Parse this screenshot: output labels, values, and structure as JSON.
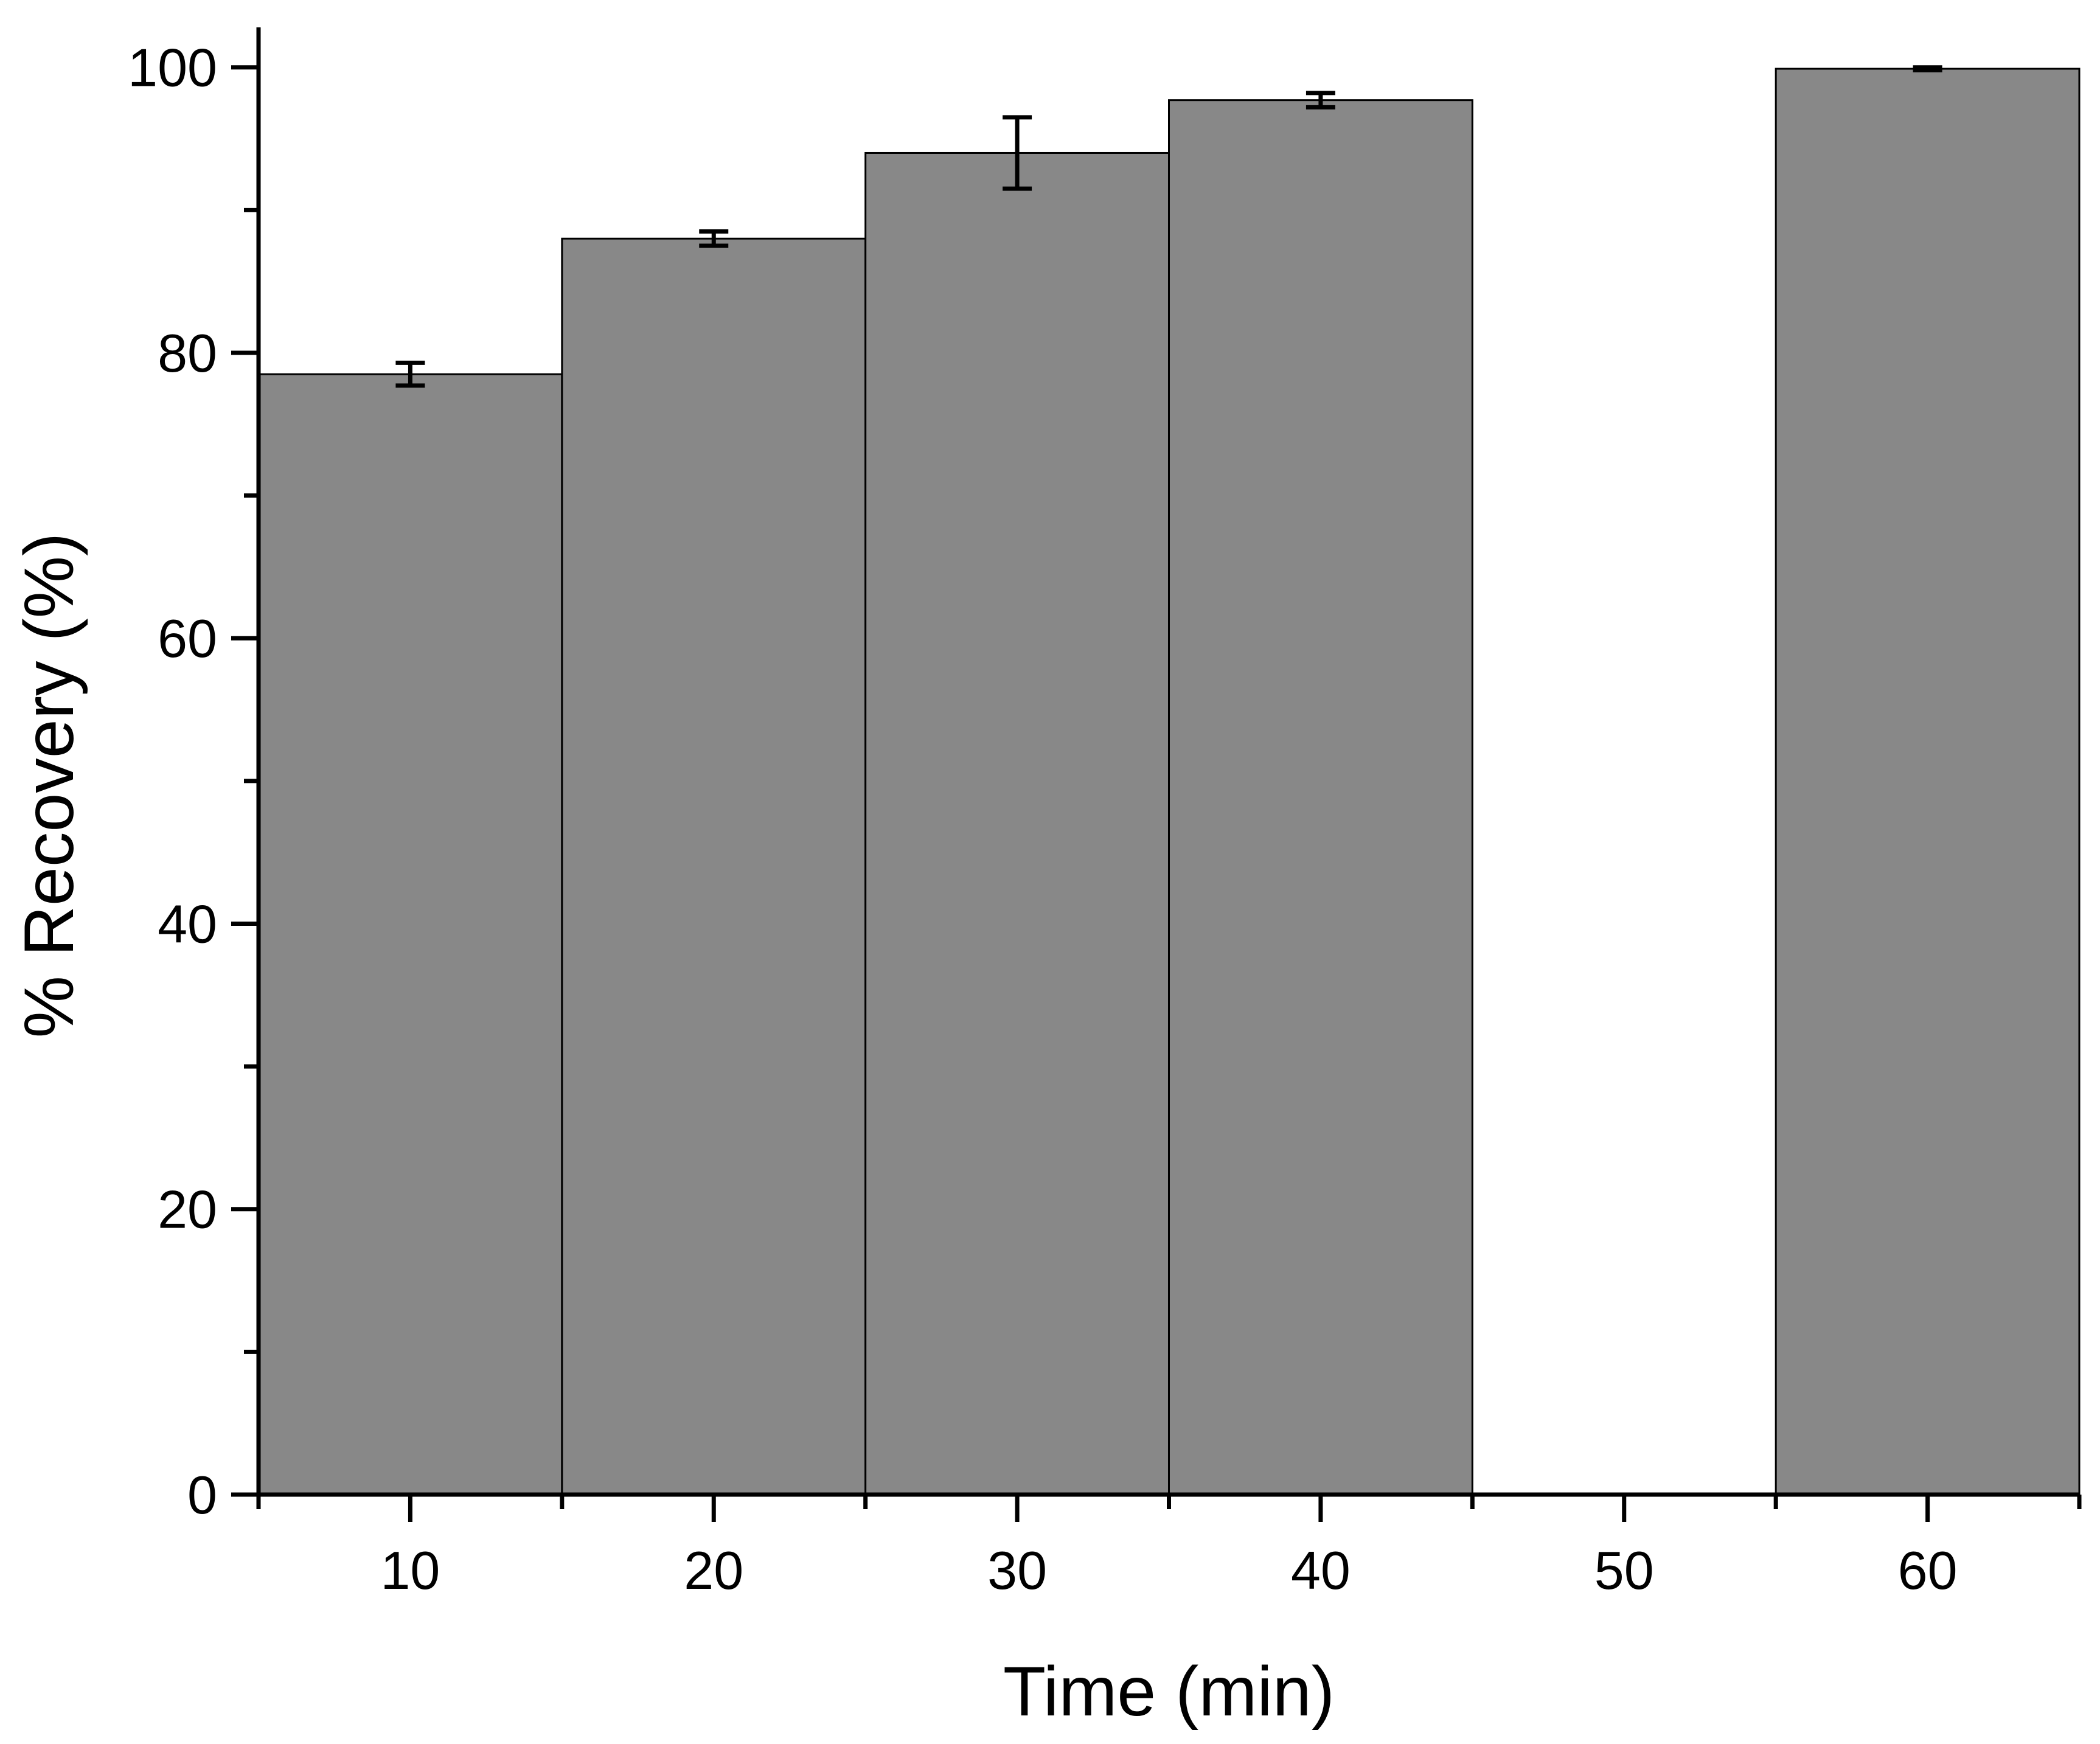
{
  "chart_data": {
    "type": "bar",
    "title": "",
    "xlabel": "Time (min)",
    "ylabel": "% Recovery (%)",
    "categories": [
      "10",
      "20",
      "30",
      "40",
      "50",
      "60"
    ],
    "x": [
      10,
      20,
      30,
      40,
      50,
      60
    ],
    "values": [
      78.5,
      88,
      94,
      97.7,
      0,
      99.9
    ],
    "error": [
      0.8,
      0.5,
      2.5,
      0.5,
      0,
      0.1
    ],
    "xlim": [
      5,
      65
    ],
    "ylim": [
      0,
      102.8
    ],
    "yticks": [
      0,
      20,
      40,
      60,
      80,
      100
    ],
    "yminor_ticks": [
      10,
      30,
      50,
      70,
      90
    ],
    "xticks": [
      10,
      20,
      30,
      40,
      50,
      60
    ],
    "xminor_ticks": [
      5,
      15,
      25,
      35,
      45,
      55,
      65
    ],
    "grid": false,
    "legend": "none",
    "colors": {
      "bar_fill": "#888888",
      "bar_edge": "#000000",
      "axis": "#000000",
      "error_bar": "#000000"
    }
  }
}
